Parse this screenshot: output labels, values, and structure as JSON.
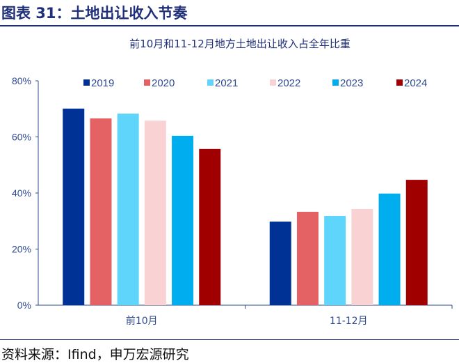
{
  "header": {
    "title": "图表 31：土地出让收入节奏"
  },
  "footer": {
    "source": "资料来源：Ifind，申万宏源研究"
  },
  "chart_data": {
    "type": "bar",
    "title": "前10月和11-12月地方土地出让收入占全年比重",
    "categories": [
      "前10月",
      "11-12月"
    ],
    "series": [
      {
        "name": "2019",
        "color": "#003296",
        "values": [
          70.1,
          29.8
        ]
      },
      {
        "name": "2020",
        "color": "#e46264",
        "values": [
          66.6,
          33.3
        ]
      },
      {
        "name": "2021",
        "color": "#5fd5fb",
        "values": [
          68.3,
          31.8
        ]
      },
      {
        "name": "2022",
        "color": "#f9d3d3",
        "values": [
          65.8,
          34.3
        ]
      },
      {
        "name": "2023",
        "color": "#00aeef",
        "values": [
          60.4,
          39.8
        ]
      },
      {
        "name": "2024",
        "color": "#a00000",
        "values": [
          55.7,
          44.7
        ]
      }
    ],
    "ylim": [
      0,
      80
    ],
    "yticks": [
      "0%",
      "20%",
      "40%",
      "60%",
      "80%"
    ],
    "legend": "top",
    "grid": false
  }
}
